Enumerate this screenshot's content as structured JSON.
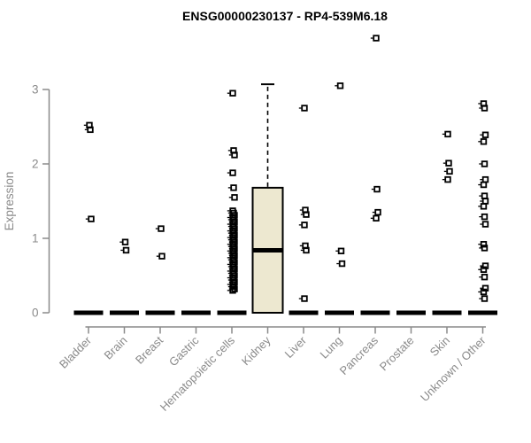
{
  "title": "ENSG00000230137 - RP4-539M6.18",
  "chart_data": {
    "type": "boxplot",
    "title": "ENSG00000230137 - RP4-539M6.18",
    "ylabel": "Expression",
    "xlabel": "",
    "ylim": [
      0,
      3
    ],
    "yticks": [
      0,
      1,
      2,
      3
    ],
    "grid": false,
    "legend": false,
    "colors": {
      "axis": "#8a8a8a",
      "tick_label": "#8a8a8a",
      "box_fill": "#EDE8D0",
      "box_stroke": "#000000",
      "point": "#000000",
      "title_text": "#000000"
    },
    "categories": [
      "Bladder",
      "Brain",
      "Breast",
      "Gastric",
      "Hematopoietic cells",
      "Kidney",
      "Liver",
      "Lung",
      "Pancreas",
      "Prostate",
      "Skin",
      "Unknown / Other"
    ],
    "boxes": [
      {
        "category": "Bladder",
        "q1": 0,
        "median": 0,
        "q3": 0,
        "whisker_low": 0,
        "whisker_high": 0,
        "outliers": [
          2.52,
          2.46,
          1.26
        ]
      },
      {
        "category": "Brain",
        "q1": 0,
        "median": 0,
        "q3": 0,
        "whisker_low": 0,
        "whisker_high": 0,
        "outliers": [
          0.95,
          0.84
        ]
      },
      {
        "category": "Breast",
        "q1": 0,
        "median": 0,
        "q3": 0,
        "whisker_low": 0,
        "whisker_high": 0,
        "outliers": [
          1.13,
          0.76
        ]
      },
      {
        "category": "Gastric",
        "q1": 0,
        "median": 0,
        "q3": 0,
        "whisker_low": 0,
        "whisker_high": 0,
        "outliers": []
      },
      {
        "category": "Hematopoietic cells",
        "q1": 0,
        "median": 0,
        "q3": 0,
        "whisker_low": 0,
        "whisker_high": 0,
        "outliers": [
          2.95,
          2.18,
          2.12,
          1.88,
          1.68,
          1.55,
          1.37,
          1.34,
          1.31,
          1.28,
          1.25,
          1.22,
          1.19,
          1.16,
          1.13,
          1.1,
          1.07,
          1.04,
          1.01,
          0.98,
          0.95,
          0.92,
          0.89,
          0.86,
          0.83,
          0.8,
          0.77,
          0.74,
          0.71,
          0.68,
          0.65,
          0.62,
          0.59,
          0.56,
          0.53,
          0.5,
          0.47,
          0.44,
          0.41,
          0.38,
          0.35,
          0.32,
          0.3
        ]
      },
      {
        "category": "Kidney",
        "q1": 0,
        "median": 0.84,
        "q3": 1.68,
        "whisker_low": 0,
        "whisker_high": 3.07,
        "outliers": []
      },
      {
        "category": "Liver",
        "q1": 0,
        "median": 0,
        "q3": 0,
        "whisker_low": 0,
        "whisker_high": 0,
        "outliers": [
          2.75,
          1.38,
          1.32,
          1.18,
          0.9,
          0.84,
          0.19
        ]
      },
      {
        "category": "Lung",
        "q1": 0,
        "median": 0,
        "q3": 0,
        "whisker_low": 0,
        "whisker_high": 0,
        "outliers": [
          3.05,
          0.83,
          0.66
        ]
      },
      {
        "category": "Pancreas",
        "q1": 0,
        "median": 0,
        "q3": 0,
        "whisker_low": 0,
        "whisker_high": 0,
        "outliers": [
          3.69,
          1.66,
          1.35,
          1.27
        ]
      },
      {
        "category": "Prostate",
        "q1": 0,
        "median": 0,
        "q3": 0,
        "whisker_low": 0,
        "whisker_high": 0,
        "outliers": []
      },
      {
        "category": "Skin",
        "q1": 0,
        "median": 0,
        "q3": 0,
        "whisker_low": 0,
        "whisker_high": 0,
        "outliers": [
          2.4,
          2.01,
          1.9,
          1.79
        ]
      },
      {
        "category": "Unknown / Other",
        "q1": 0,
        "median": 0,
        "q3": 0,
        "whisker_low": 0,
        "whisker_high": 0,
        "outliers": [
          2.81,
          2.75,
          2.39,
          2.3,
          2.0,
          1.79,
          1.72,
          1.57,
          1.5,
          1.43,
          1.29,
          1.19,
          0.92,
          0.87,
          0.63,
          0.58,
          0.48,
          0.33,
          0.28,
          0.19
        ]
      }
    ]
  }
}
